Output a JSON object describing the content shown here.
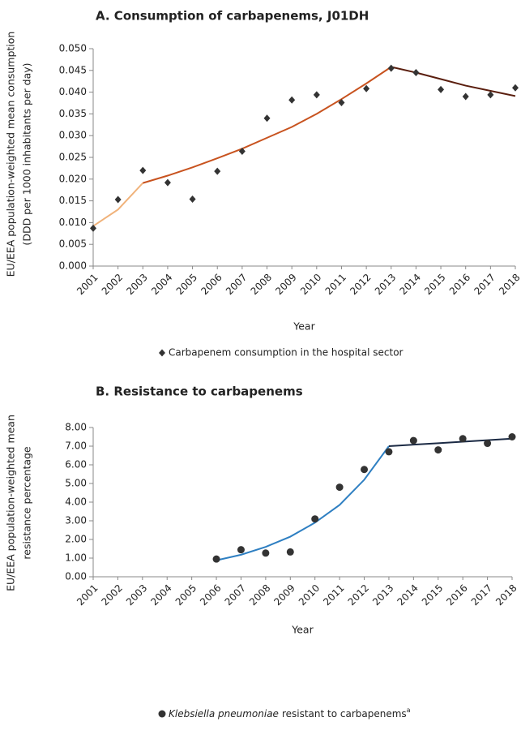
{
  "chart_data": [
    {
      "type": "scatter",
      "title": "A. Consumption of carbapenems, J01DH",
      "y_label": [
        "EU/EEA population-weighted mean consumption",
        "(DDD per 1000 inhabitants per day)"
      ],
      "x_label": "Year",
      "x": [
        2001,
        2002,
        2003,
        2004,
        2005,
        2006,
        2007,
        2008,
        2009,
        2010,
        2011,
        2012,
        2013,
        2014,
        2015,
        2016,
        2017,
        2018
      ],
      "xlim": [
        2001,
        2018
      ],
      "xticks": [
        2001,
        2002,
        2003,
        2004,
        2005,
        2006,
        2007,
        2008,
        2009,
        2010,
        2011,
        2012,
        2013,
        2014,
        2015,
        2016,
        2017,
        2018
      ],
      "ylim": [
        0,
        0.05
      ],
      "yticks": [
        {
          "value": 0,
          "label": "0.000"
        },
        {
          "value": 0.005,
          "label": "0.005"
        },
        {
          "value": 0.01,
          "label": "0.010"
        },
        {
          "value": 0.015,
          "label": "0.015"
        },
        {
          "value": 0.02,
          "label": "0.020"
        },
        {
          "value": 0.025,
          "label": "0.025"
        },
        {
          "value": 0.03,
          "label": "0.030"
        },
        {
          "value": 0.035,
          "label": "0.035"
        },
        {
          "value": 0.04,
          "label": "0.040"
        },
        {
          "value": 0.045,
          "label": "0.045"
        },
        {
          "value": 0.05,
          "label": "0.050"
        }
      ],
      "series": [
        {
          "name": "Carbapenem consumption in the hospital sector",
          "color": "#333333",
          "marker": "diamond",
          "values": [
            0.0087,
            0.0153,
            0.022,
            0.0192,
            0.0154,
            0.0218,
            0.0264,
            0.034,
            0.0382,
            0.0394,
            0.0376,
            0.0408,
            0.0455,
            0.0445,
            0.0406,
            0.039,
            0.0394,
            0.041
          ]
        }
      ],
      "trend_lines": [
        {
          "color": "#f0b27a",
          "values": [
            0.0092,
            0.013,
            0.0191,
            null,
            null,
            null,
            null,
            null,
            null,
            null,
            null,
            null,
            null,
            null,
            null,
            null,
            null,
            null
          ]
        },
        {
          "color": "#c8531f",
          "values": [
            null,
            null,
            0.0191,
            0.0208,
            0.0227,
            0.0248,
            0.027,
            0.0295,
            0.032,
            0.035,
            0.0384,
            0.042,
            0.0458,
            null,
            null,
            null,
            null,
            null
          ]
        },
        {
          "color": "#5a1e0e",
          "values": [
            null,
            null,
            null,
            null,
            null,
            null,
            null,
            null,
            null,
            null,
            null,
            null,
            0.0458,
            0.0445,
            0.043,
            0.0415,
            0.0403,
            0.0391
          ]
        }
      ]
    },
    {
      "type": "scatter",
      "title": "B. Resistance to carbapenems",
      "y_label": [
        "EU/EEA population-weighted mean",
        "resistance percentage"
      ],
      "x_label": "Year",
      "x": [
        2001,
        2002,
        2003,
        2004,
        2005,
        2006,
        2007,
        2008,
        2009,
        2010,
        2011,
        2012,
        2013,
        2014,
        2015,
        2016,
        2017,
        2018
      ],
      "xlim": [
        2001,
        2018
      ],
      "xticks": [
        2001,
        2002,
        2003,
        2004,
        2005,
        2006,
        2007,
        2008,
        2009,
        2010,
        2011,
        2012,
        2013,
        2014,
        2015,
        2016,
        2017,
        2018
      ],
      "ylim": [
        0,
        8
      ],
      "yticks": [
        {
          "value": 0,
          "label": "0.00"
        },
        {
          "value": 1,
          "label": "1.00"
        },
        {
          "value": 2,
          "label": "2.00"
        },
        {
          "value": 3,
          "label": "3.00"
        },
        {
          "value": 4,
          "label": "4.00"
        },
        {
          "value": 5,
          "label": "5.00"
        },
        {
          "value": 6,
          "label": "6.00"
        },
        {
          "value": 7,
          "label": "7.00"
        },
        {
          "value": 8,
          "label": "8.00"
        }
      ],
      "series": [
        {
          "name": {
            "italic": "Klebsiella pneumoniae",
            "text": "resistant to carbapenems",
            "note": "a"
          },
          "color": "#333333",
          "marker": "circle",
          "values": [
            null,
            null,
            null,
            null,
            null,
            0.95,
            1.45,
            1.27,
            1.33,
            3.1,
            4.8,
            5.75,
            6.7,
            7.3,
            6.8,
            7.4,
            7.15,
            7.5
          ]
        }
      ],
      "trend_lines": [
        {
          "color": "#2e7fc2",
          "values": [
            null,
            null,
            null,
            null,
            null,
            0.88,
            1.18,
            1.6,
            2.15,
            2.9,
            3.85,
            5.2,
            7.0,
            null,
            null,
            null,
            null,
            null
          ]
        },
        {
          "color": "#1b2a44",
          "values": [
            null,
            null,
            null,
            null,
            null,
            null,
            null,
            null,
            null,
            null,
            null,
            null,
            7.0,
            7.08,
            7.16,
            7.24,
            7.32,
            7.4
          ]
        }
      ]
    }
  ]
}
